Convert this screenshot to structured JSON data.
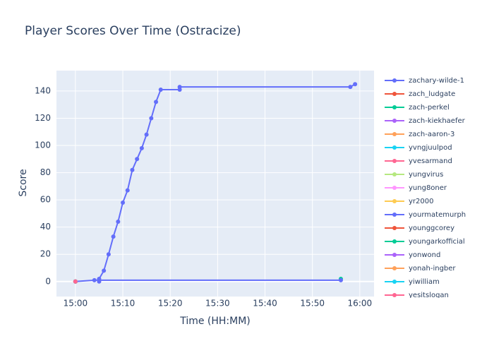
{
  "chart_data": {
    "type": "line",
    "title": "Player Scores Over Time (Ostracize)",
    "x_label": "Time (HH:MM)",
    "y_label": "Score",
    "xlim": [
      "14:56",
      "16:03"
    ],
    "xticks": [
      "15:00",
      "15:10",
      "15:20",
      "15:30",
      "15:40",
      "15:50",
      "16:00"
    ],
    "ylim": [
      -11,
      155
    ],
    "yticks": [
      0,
      20,
      40,
      60,
      80,
      100,
      120,
      140
    ],
    "grid": true,
    "legend": "right",
    "series": [
      {
        "name": "zachary-wilde-1",
        "color": "#636efa",
        "x": [
          "15:05",
          "15:05",
          "15:06",
          "15:07",
          "15:08",
          "15:09",
          "15:10",
          "15:11",
          "15:12",
          "15:13",
          "15:14",
          "15:15",
          "15:16",
          "15:17",
          "15:18",
          "15:22",
          "15:22",
          "15:58",
          "15:59"
        ],
        "values": [
          0,
          2,
          8,
          20,
          33,
          44,
          58,
          67,
          82,
          90,
          98,
          108,
          120,
          132,
          141,
          141,
          143,
          143,
          145
        ]
      },
      {
        "name": "zach_ludgate",
        "color": "#EF553B",
        "x": [
          "15:00"
        ],
        "values": [
          0
        ]
      },
      {
        "name": "zach-perkel",
        "color": "#00cc96",
        "x": [
          "15:56"
        ],
        "values": [
          2
        ]
      },
      {
        "name": "zach-kiekhaefer",
        "color": "#ab63fa",
        "x": [
          "15:00"
        ],
        "values": [
          0
        ]
      },
      {
        "name": "zach-aaron-3",
        "color": "#FFA15A",
        "x": [
          "15:00"
        ],
        "values": [
          0
        ]
      },
      {
        "name": "yvngjuulpod",
        "color": "#19d3f3",
        "x": [
          "15:00"
        ],
        "values": [
          0
        ]
      },
      {
        "name": "yvesarmand",
        "color": "#FF6692",
        "x": [
          "15:00"
        ],
        "values": [
          0
        ]
      },
      {
        "name": "yungvirus",
        "color": "#B6E880",
        "x": [
          "15:00"
        ],
        "values": [
          0
        ]
      },
      {
        "name": "yung8oner",
        "color": "#FF97FF",
        "x": [
          "15:00"
        ],
        "values": [
          0
        ]
      },
      {
        "name": "yr2000",
        "color": "#FECB52",
        "x": [
          "15:00"
        ],
        "values": [
          0
        ]
      },
      {
        "name": "yourmatemurph",
        "color": "#636efa",
        "x": [
          "15:00",
          "15:04",
          "15:56"
        ],
        "values": [
          0,
          1,
          1
        ]
      },
      {
        "name": "younggcorey",
        "color": "#EF553B",
        "x": [
          "15:00"
        ],
        "values": [
          0
        ]
      },
      {
        "name": "youngarkofficial",
        "color": "#00cc96",
        "x": [
          "15:00"
        ],
        "values": [
          0
        ]
      },
      {
        "name": "yonwond",
        "color": "#ab63fa",
        "x": [
          "15:00"
        ],
        "values": [
          0
        ]
      },
      {
        "name": "yonah-ingber",
        "color": "#FFA15A",
        "x": [
          "15:00"
        ],
        "values": [
          0
        ]
      },
      {
        "name": "yiwilliam",
        "color": "#19d3f3",
        "x": [
          "15:00"
        ],
        "values": [
          0
        ]
      },
      {
        "name": "yesitslogan",
        "color": "#FF6692",
        "x": [
          "15:00"
        ],
        "values": [
          0
        ]
      }
    ]
  }
}
